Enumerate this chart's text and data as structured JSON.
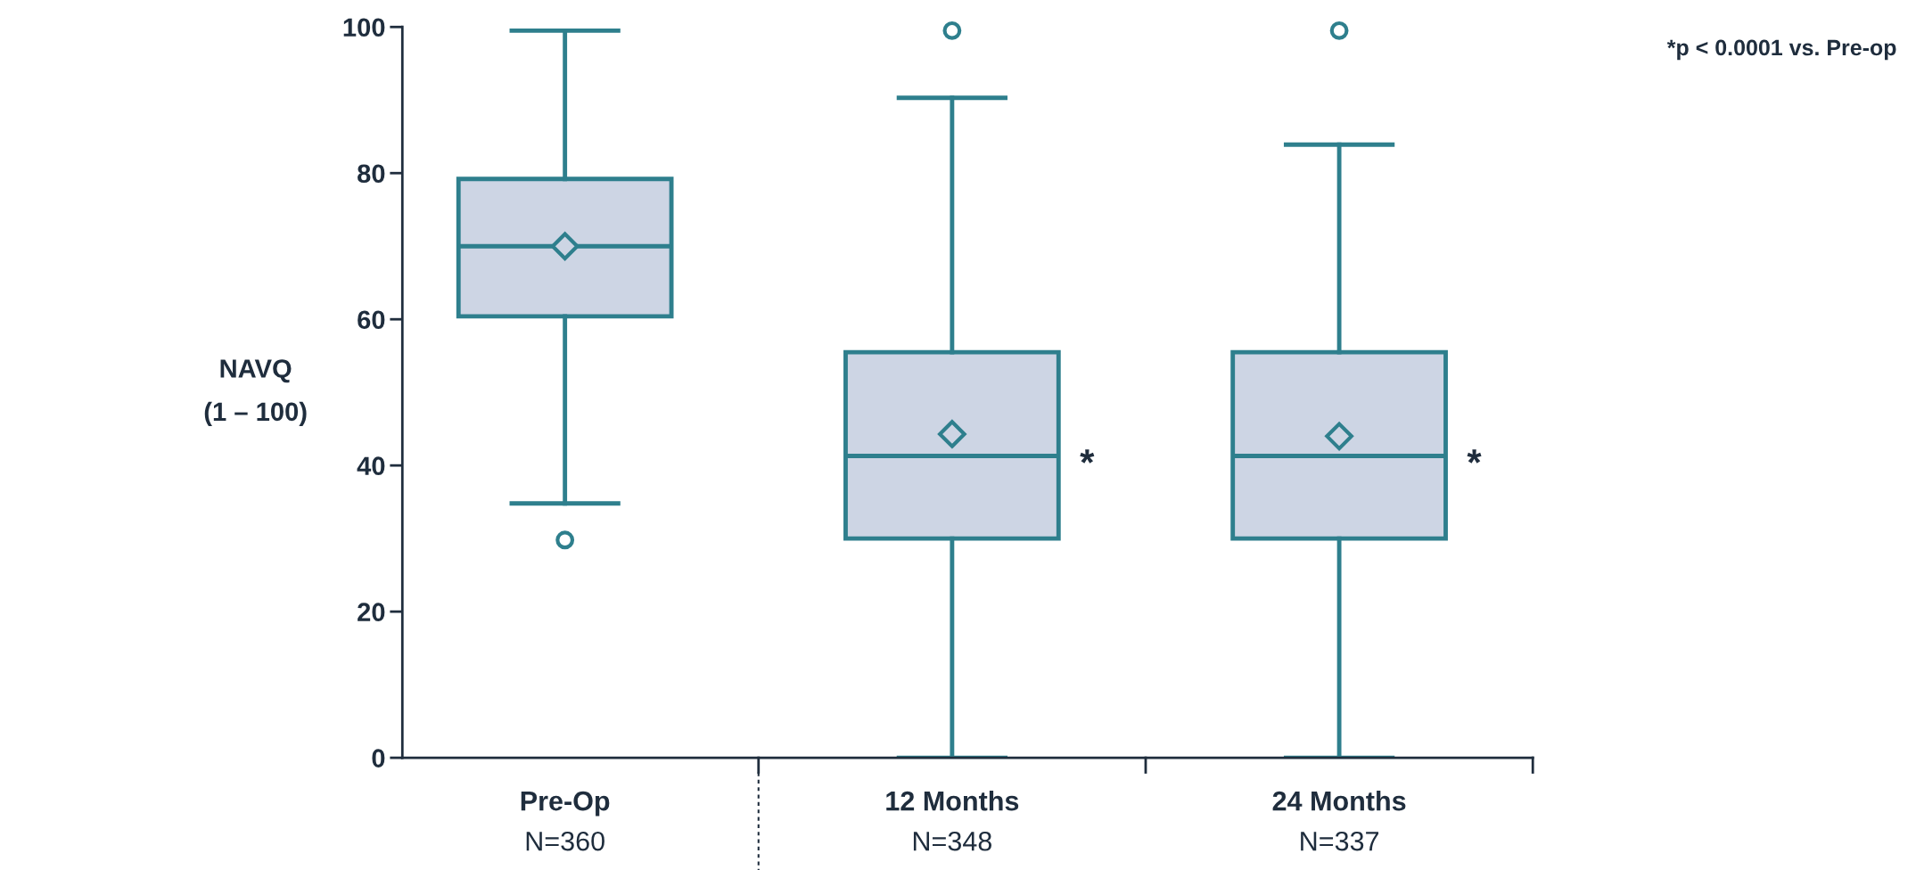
{
  "chart_data": {
    "type": "box",
    "ylabel": "NAVQ\n(1 – 100)",
    "categories": [
      "Pre-Op\nN=360",
      "12 Months\nN=348",
      "24 Months\nN=337"
    ],
    "boxes": [
      {
        "low": 34.8,
        "q1": 60.4,
        "median": 70,
        "q3": 79.2,
        "high": 99.5,
        "mean": 70,
        "outliers": [
          29.8
        ]
      },
      {
        "low": 0,
        "q1": 30,
        "median": 41.3,
        "q3": 55.5,
        "high": 90.3,
        "mean": 44.3,
        "outliers": [
          99.5
        ]
      },
      {
        "low": 0,
        "q1": 30,
        "median": 41.3,
        "q3": 55.5,
        "high": 83.9,
        "mean": 44,
        "outliers": [
          99.5
        ]
      }
    ],
    "color": "#2e7f8d",
    "ylim": [
      0,
      100
    ],
    "yticks": [
      0,
      20,
      40,
      60,
      80,
      100
    ],
    "grid": false,
    "marker": "diamond",
    "annotations": [
      "*p < 0.0001 vs. Pre-op",
      "*",
      "*"
    ]
  }
}
